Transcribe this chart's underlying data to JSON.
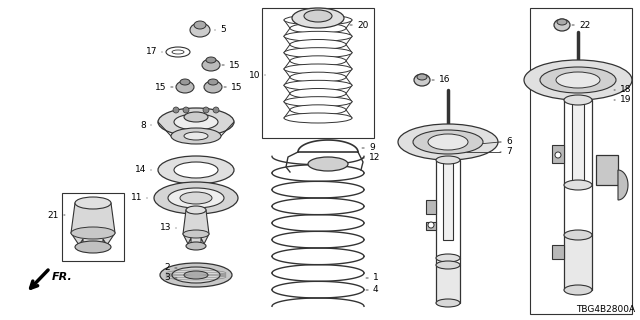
{
  "background_color": "#ffffff",
  "diagram_code": "TBG4B2800A",
  "line_color": "#333333",
  "text_color": "#000000",
  "lfs": 6.5,
  "fig_w": 6.4,
  "fig_h": 3.2,
  "dpi": 100
}
